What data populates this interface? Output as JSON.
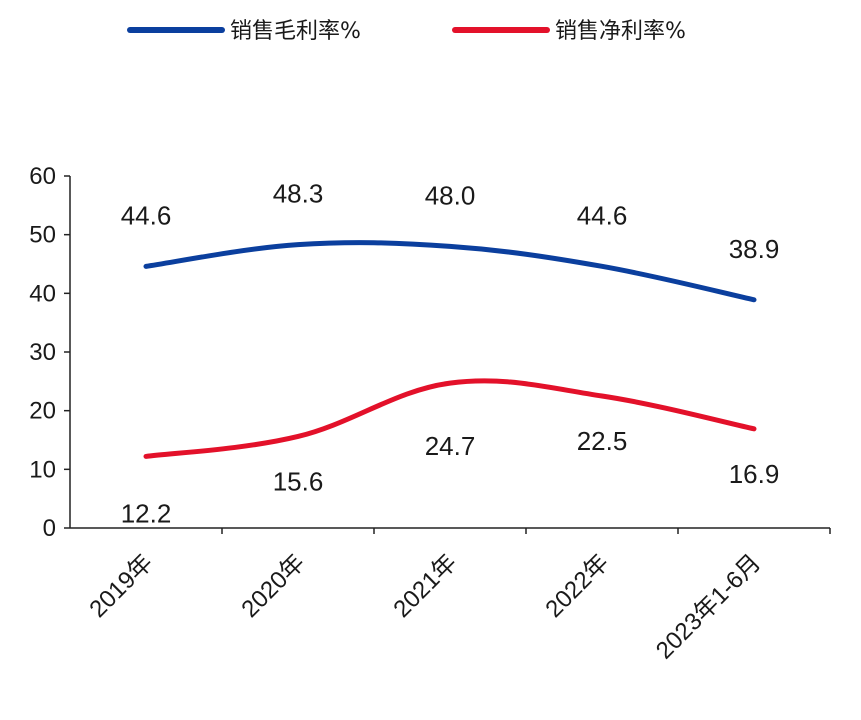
{
  "chart_data": {
    "type": "line",
    "title": "",
    "xlabel": "",
    "ylabel": "",
    "categories": [
      "2019年",
      "2020年",
      "2021年",
      "2022年",
      "2023年1-6月"
    ],
    "ylim": [
      0,
      60
    ],
    "yticks": [
      0,
      10,
      20,
      30,
      40,
      50,
      60
    ],
    "grid": false,
    "legend_position": "top",
    "series": [
      {
        "name": "销售毛利率%",
        "color": "#0b3f9e",
        "values": [
          44.6,
          48.3,
          48.0,
          44.6,
          38.9
        ],
        "labels": [
          "44.6",
          "48.3",
          "48.0",
          "44.6",
          "38.9"
        ],
        "label_placement": "above"
      },
      {
        "name": "销售净利率%",
        "color": "#e3112a",
        "values": [
          12.2,
          15.6,
          24.7,
          22.5,
          16.9
        ],
        "labels": [
          "12.2",
          "15.6",
          "24.7",
          "22.5",
          "16.9"
        ],
        "label_placement": "below"
      }
    ]
  }
}
